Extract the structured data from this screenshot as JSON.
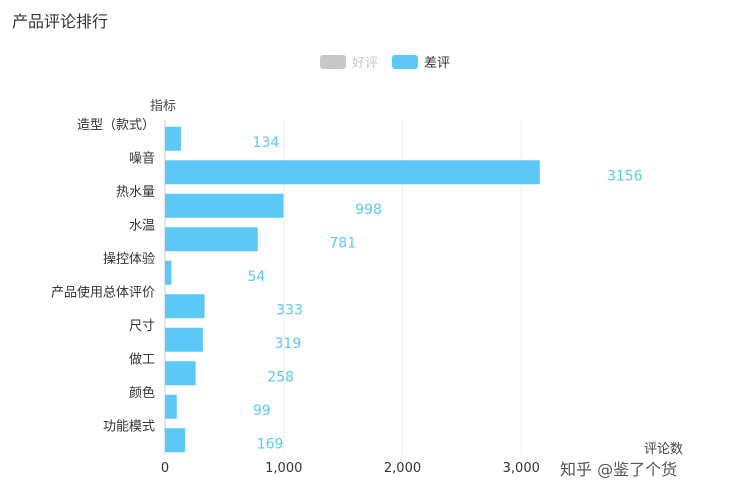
{
  "title": "产品评论排行",
  "legend": {
    "items": [
      {
        "label": "好评",
        "color": "#c8c8c8",
        "active": false
      },
      {
        "label": "差评",
        "color": "#5bc8f5",
        "active": true
      }
    ]
  },
  "watermark": "知乎 @鉴了个货",
  "chart_data": {
    "type": "bar",
    "orientation": "horizontal",
    "ylabel": "指标",
    "xlabel": "评论数",
    "categories": [
      "造型（款式）",
      "噪音",
      "热水量",
      "水温",
      "操控体验",
      "产品使用总体评价",
      "尺寸",
      "做工",
      "颜色",
      "功能模式"
    ],
    "series": [
      {
        "name": "差评",
        "color": "#5bc8f5",
        "values": [
          134,
          3156,
          998,
          781,
          54,
          333,
          319,
          258,
          99,
          169
        ]
      }
    ],
    "xlim": [
      0,
      4000
    ],
    "xticks": [
      0,
      1000,
      2000,
      3000
    ],
    "xtick_labels": [
      "0",
      "1,000",
      "2,000",
      "3,000"
    ],
    "grid": true,
    "legend_position": "top-center"
  }
}
